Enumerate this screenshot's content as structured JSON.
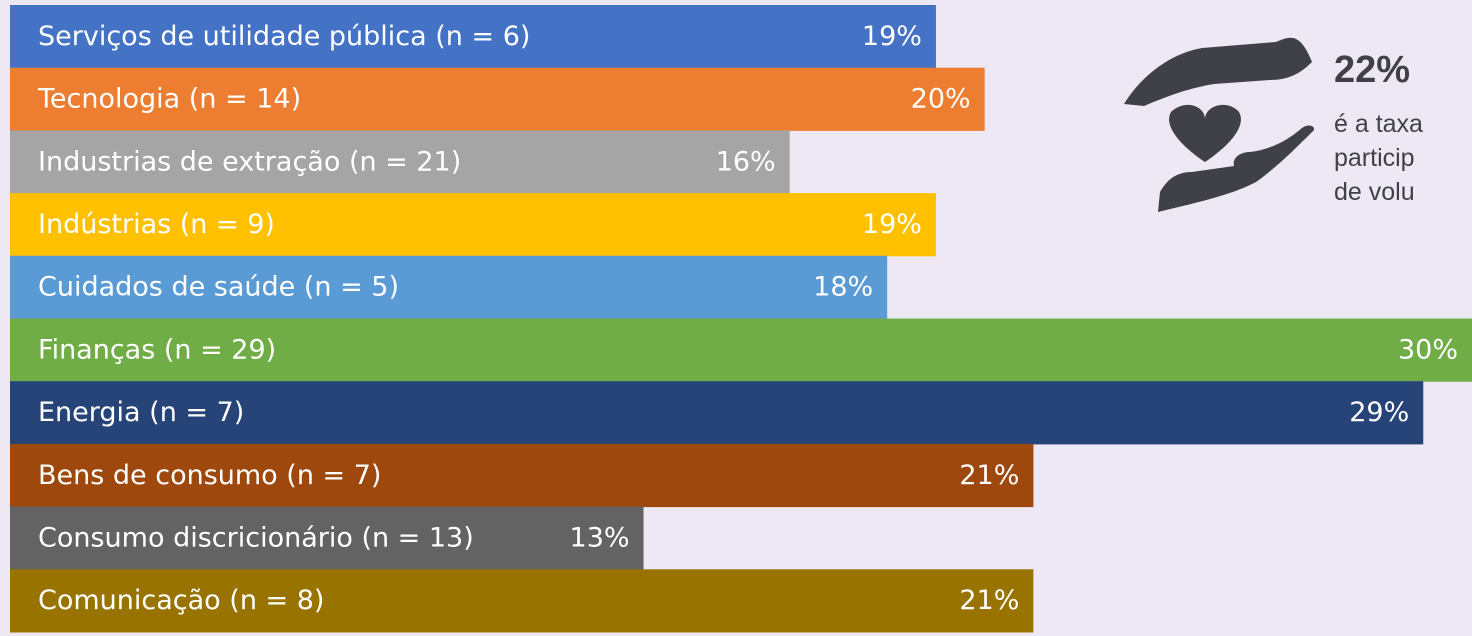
{
  "chart_data": {
    "type": "bar",
    "orientation": "horizontal",
    "categories": [
      "Serviços de utilidade pública (n = 6)",
      "Tecnologia (n = 14)",
      "Industrias de extração (n = 21)",
      "Indústrias (n = 9)",
      "Cuidados de saúde (n = 5)",
      "Finanças (n = 29)",
      "Energia (n = 7)",
      "Bens de consumo (n = 7)",
      "Consumo discricionário (n = 13)",
      "Comunicação (n = 8)"
    ],
    "values": [
      19,
      20,
      16,
      19,
      18,
      30,
      29,
      21,
      13,
      21
    ],
    "value_labels": [
      "19%",
      "20%",
      "16%",
      "19%",
      "18%",
      "30%",
      "29%",
      "21%",
      "13%",
      "21%"
    ],
    "colors": [
      "#4472c4",
      "#ed7d31",
      "#a5a5a5",
      "#ffc000",
      "#5b9bd5",
      "#70ad47",
      "#264478",
      "#9e480e",
      "#636363",
      "#997300"
    ],
    "xlim": [
      0,
      30
    ],
    "annotation": {
      "title": "22%",
      "lines": [
        "é a taxa",
        "particip",
        "de volu"
      ]
    }
  }
}
